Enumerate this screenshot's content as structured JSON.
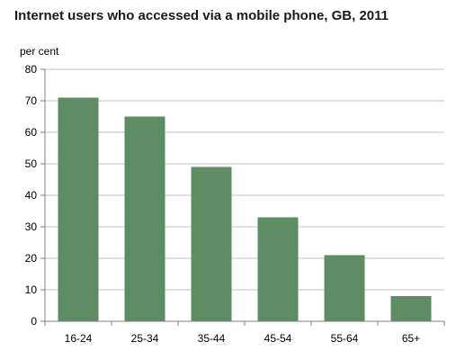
{
  "chart_data": {
    "type": "bar",
    "title": "Internet users who accessed via a mobile phone, GB, 2011",
    "ylabel": "per cent",
    "xlabel": "",
    "categories": [
      "16-24",
      "25-34",
      "35-44",
      "45-54",
      "55-64",
      "65+"
    ],
    "values": [
      71,
      65,
      49,
      33,
      21,
      8
    ],
    "ylim": [
      0,
      80
    ],
    "yticks": [
      0,
      10,
      20,
      30,
      40,
      50,
      60,
      70,
      80
    ],
    "grid": true,
    "bar_color": "#5e8c63",
    "grid_color": "#c0c0c0",
    "axis_color": "#808080"
  }
}
